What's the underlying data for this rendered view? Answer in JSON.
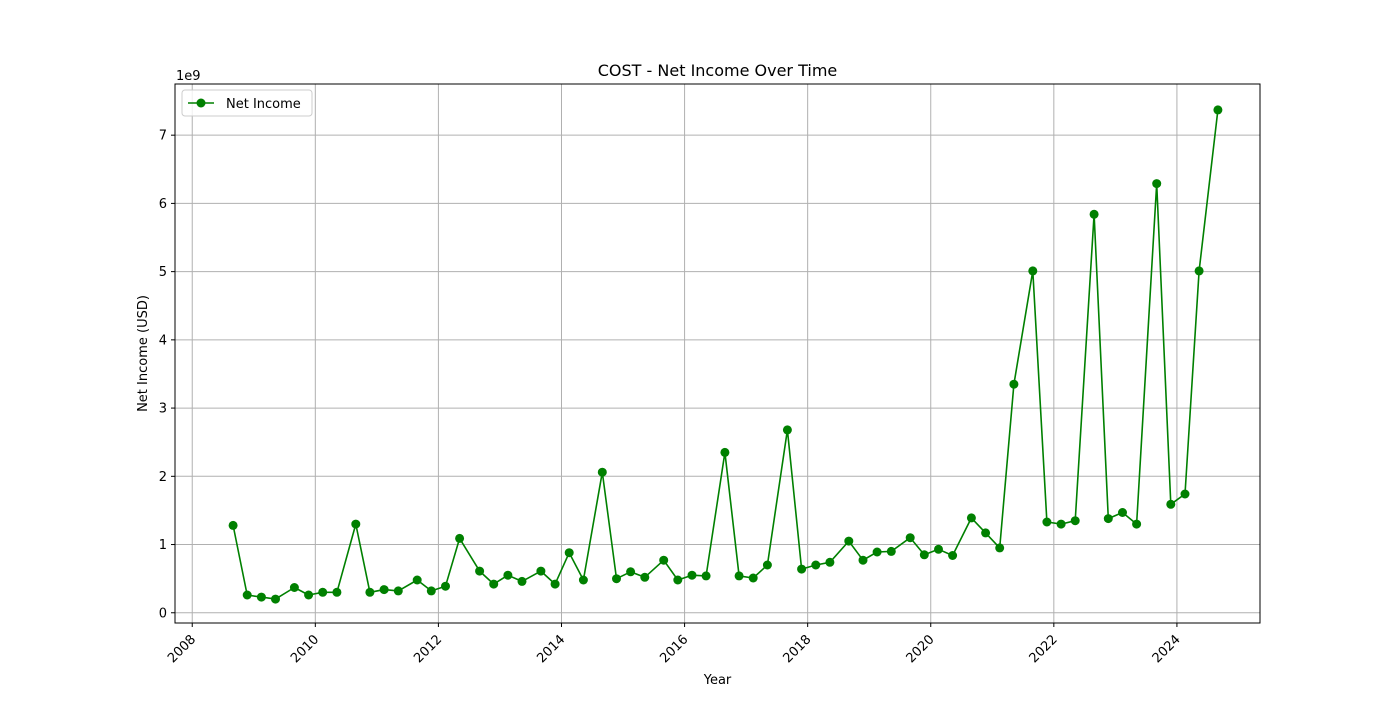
{
  "chart_data": {
    "type": "line",
    "title": "COST - Net Income Over Time",
    "xlabel": "Year",
    "ylabel": "Net Income (USD)",
    "y_offset_label": "1e9",
    "xlim": [
      2007.72,
      2025.35
    ],
    "ylim": [
      -150000000,
      7750000000
    ],
    "x_ticks": [
      2008,
      2010,
      2012,
      2014,
      2016,
      2018,
      2020,
      2022,
      2024
    ],
    "x_tick_labels": [
      "2008",
      "2010",
      "2012",
      "2014",
      "2016",
      "2018",
      "2020",
      "2022",
      "2024"
    ],
    "y_ticks": [
      0,
      1000000000,
      2000000000,
      3000000000,
      4000000000,
      5000000000,
      6000000000,
      7000000000
    ],
    "y_tick_labels": [
      "0",
      "1",
      "2",
      "3",
      "4",
      "5",
      "6",
      "7"
    ],
    "grid": true,
    "legend_position": "top-left",
    "series": [
      {
        "name": "Net Income",
        "color": "#008000",
        "marker": "circle",
        "x": [
          "2008-08-31",
          "2008-11-23",
          "2009-02-15",
          "2009-05-10",
          "2009-08-30",
          "2009-11-22",
          "2010-02-14",
          "2010-05-09",
          "2010-08-29",
          "2010-11-21",
          "2011-02-13",
          "2011-05-08",
          "2011-08-28",
          "2011-11-20",
          "2012-02-12",
          "2012-05-06",
          "2012-09-02",
          "2012-11-25",
          "2013-02-17",
          "2013-05-12",
          "2013-09-01",
          "2013-11-24",
          "2014-02-16",
          "2014-05-11",
          "2014-08-31",
          "2014-11-23",
          "2015-02-15",
          "2015-05-10",
          "2015-08-30",
          "2015-11-22",
          "2016-02-14",
          "2016-05-08",
          "2016-08-28",
          "2016-11-20",
          "2017-02-12",
          "2017-05-07",
          "2017-09-03",
          "2017-11-26",
          "2018-02-18",
          "2018-05-13",
          "2018-09-02",
          "2018-11-25",
          "2019-02-17",
          "2019-05-12",
          "2019-09-01",
          "2019-11-24",
          "2020-02-16",
          "2020-05-10",
          "2020-08-30",
          "2020-11-22",
          "2021-02-14",
          "2021-05-09",
          "2021-08-29",
          "2021-11-21",
          "2022-02-13",
          "2022-05-08",
          "2022-08-28",
          "2022-11-20",
          "2023-02-12",
          "2023-05-07",
          "2023-09-03",
          "2023-11-26",
          "2024-02-18",
          "2024-05-12",
          "2024-09-01"
        ],
        "y": [
          1280000000,
          260000000,
          230000000,
          200000000,
          370000000,
          260000000,
          300000000,
          300000000,
          1300000000,
          300000000,
          340000000,
          320000000,
          480000000,
          320000000,
          390000000,
          1090000000,
          610000000,
          420000000,
          550000000,
          460000000,
          610000000,
          420000000,
          880000000,
          480000000,
          2060000000,
          500000000,
          600000000,
          520000000,
          770000000,
          480000000,
          550000000,
          540000000,
          2350000000,
          540000000,
          510000000,
          700000000,
          2680000000,
          640000000,
          700000000,
          740000000,
          1050000000,
          770000000,
          890000000,
          900000000,
          1100000000,
          850000000,
          930000000,
          840000000,
          1390000000,
          1170000000,
          950000000,
          3350000000,
          5010000000,
          1330000000,
          1300000000,
          1350000000,
          5840000000,
          1380000000,
          1470000000,
          1300000000,
          6290000000,
          1590000000,
          1740000000,
          5010000000,
          7370000000
        ]
      }
    ]
  }
}
